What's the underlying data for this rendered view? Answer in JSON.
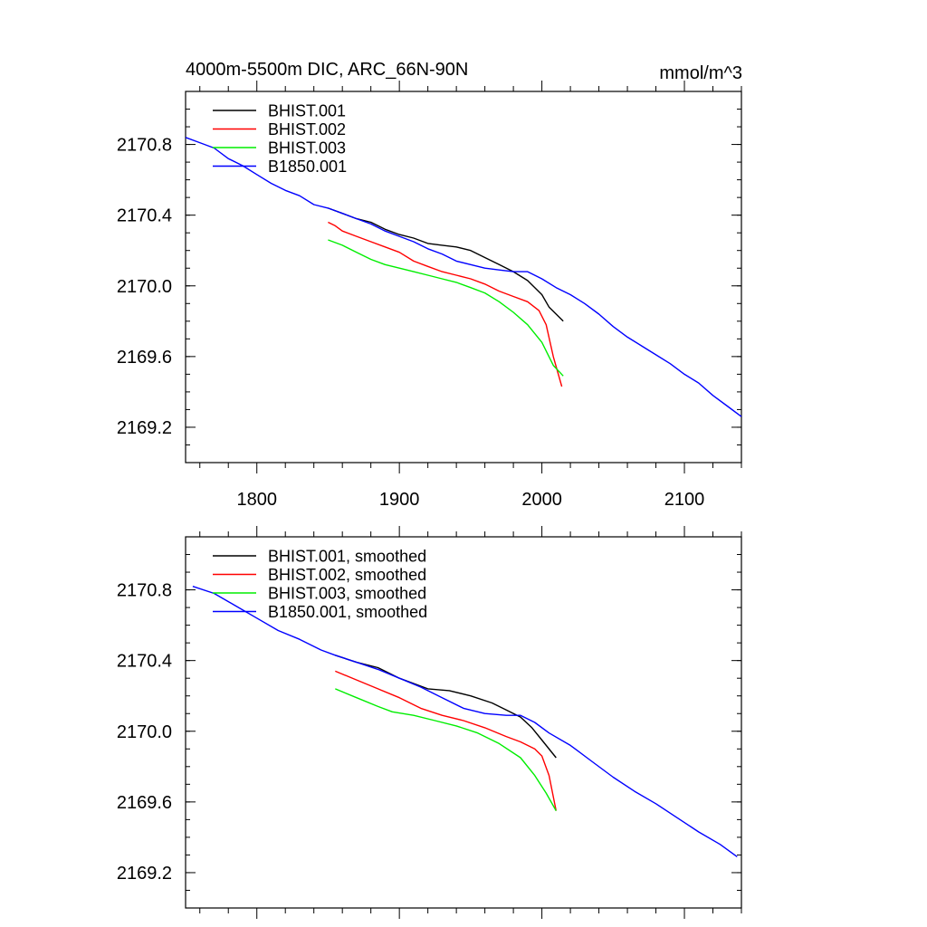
{
  "header": {
    "left_title": "4000m-5500m DIC, ARC_66N-90N",
    "right_title": "mmol/m^3"
  },
  "chart_data": [
    {
      "type": "line",
      "grid": false,
      "legend_position": "top-left",
      "xlim": [
        1750,
        2140
      ],
      "ylim": [
        2169.0,
        2171.1
      ],
      "x_ticks": [
        "1800",
        "1900",
        "2000",
        "2100"
      ],
      "y_ticks": [
        "2170.8",
        "2170.4",
        "2170.0",
        "2169.6",
        "2169.2"
      ],
      "series": [
        {
          "name": "BHIST.001",
          "color": "#000000",
          "points": [
            [
              1850,
              2170.44
            ],
            [
              1860,
              2170.41
            ],
            [
              1870,
              2170.38
            ],
            [
              1880,
              2170.36
            ],
            [
              1890,
              2170.32
            ],
            [
              1900,
              2170.29
            ],
            [
              1910,
              2170.27
            ],
            [
              1920,
              2170.24
            ],
            [
              1930,
              2170.23
            ],
            [
              1940,
              2170.22
            ],
            [
              1950,
              2170.2
            ],
            [
              1960,
              2170.16
            ],
            [
              1970,
              2170.12
            ],
            [
              1980,
              2170.08
            ],
            [
              1990,
              2170.03
            ],
            [
              2000,
              2169.95
            ],
            [
              2005,
              2169.88
            ],
            [
              2015,
              2169.8
            ]
          ]
        },
        {
          "name": "BHIST.002",
          "color": "#ff0000",
          "points": [
            [
              1850,
              2170.36
            ],
            [
              1855,
              2170.34
            ],
            [
              1860,
              2170.31
            ],
            [
              1870,
              2170.28
            ],
            [
              1880,
              2170.25
            ],
            [
              1890,
              2170.22
            ],
            [
              1900,
              2170.19
            ],
            [
              1910,
              2170.14
            ],
            [
              1920,
              2170.11
            ],
            [
              1930,
              2170.08
            ],
            [
              1940,
              2170.06
            ],
            [
              1950,
              2170.04
            ],
            [
              1960,
              2170.01
            ],
            [
              1970,
              2169.97
            ],
            [
              1980,
              2169.94
            ],
            [
              1990,
              2169.91
            ],
            [
              1998,
              2169.86
            ],
            [
              2003,
              2169.78
            ],
            [
              2008,
              2169.6
            ],
            [
              2014,
              2169.43
            ]
          ]
        },
        {
          "name": "BHIST.003",
          "color": "#00ee00",
          "points": [
            [
              1850,
              2170.26
            ],
            [
              1860,
              2170.23
            ],
            [
              1870,
              2170.19
            ],
            [
              1880,
              2170.15
            ],
            [
              1890,
              2170.12
            ],
            [
              1900,
              2170.1
            ],
            [
              1910,
              2170.08
            ],
            [
              1920,
              2170.06
            ],
            [
              1930,
              2170.04
            ],
            [
              1940,
              2170.02
            ],
            [
              1950,
              2169.99
            ],
            [
              1960,
              2169.96
            ],
            [
              1970,
              2169.91
            ],
            [
              1980,
              2169.85
            ],
            [
              1990,
              2169.78
            ],
            [
              2000,
              2169.68
            ],
            [
              2008,
              2169.55
            ],
            [
              2015,
              2169.49
            ]
          ]
        },
        {
          "name": "B1850.001",
          "color": "#0000ff",
          "points": [
            [
              1750,
              2170.84
            ],
            [
              1760,
              2170.81
            ],
            [
              1770,
              2170.78
            ],
            [
              1780,
              2170.72
            ],
            [
              1790,
              2170.68
            ],
            [
              1800,
              2170.63
            ],
            [
              1810,
              2170.58
            ],
            [
              1820,
              2170.54
            ],
            [
              1830,
              2170.51
            ],
            [
              1840,
              2170.46
            ],
            [
              1850,
              2170.44
            ],
            [
              1860,
              2170.41
            ],
            [
              1870,
              2170.38
            ],
            [
              1880,
              2170.35
            ],
            [
              1890,
              2170.31
            ],
            [
              1900,
              2170.28
            ],
            [
              1910,
              2170.25
            ],
            [
              1920,
              2170.21
            ],
            [
              1930,
              2170.18
            ],
            [
              1940,
              2170.14
            ],
            [
              1950,
              2170.12
            ],
            [
              1960,
              2170.1
            ],
            [
              1970,
              2170.09
            ],
            [
              1980,
              2170.08
            ],
            [
              1990,
              2170.08
            ],
            [
              2000,
              2170.04
            ],
            [
              2010,
              2169.99
            ],
            [
              2020,
              2169.95
            ],
            [
              2030,
              2169.9
            ],
            [
              2040,
              2169.84
            ],
            [
              2050,
              2169.77
            ],
            [
              2060,
              2169.71
            ],
            [
              2070,
              2169.66
            ],
            [
              2080,
              2169.61
            ],
            [
              2090,
              2169.56
            ],
            [
              2100,
              2169.5
            ],
            [
              2110,
              2169.45
            ],
            [
              2120,
              2169.38
            ],
            [
              2130,
              2169.32
            ],
            [
              2140,
              2169.26
            ]
          ]
        }
      ]
    },
    {
      "type": "line",
      "grid": false,
      "legend_position": "top-left",
      "xlim": [
        1750,
        2140
      ],
      "ylim": [
        2169.0,
        2171.1
      ],
      "x_ticks": [],
      "y_ticks": [
        "2170.8",
        "2170.4",
        "2170.0",
        "2169.6",
        "2169.2"
      ],
      "series": [
        {
          "name": "BHIST.001, smoothed",
          "color": "#000000",
          "points": [
            [
              1855,
              2170.43
            ],
            [
              1870,
              2170.39
            ],
            [
              1885,
              2170.36
            ],
            [
              1900,
              2170.3
            ],
            [
              1910,
              2170.27
            ],
            [
              1920,
              2170.24
            ],
            [
              1935,
              2170.23
            ],
            [
              1950,
              2170.2
            ],
            [
              1965,
              2170.16
            ],
            [
              1975,
              2170.12
            ],
            [
              1985,
              2170.08
            ],
            [
              1993,
              2170.02
            ],
            [
              2000,
              2169.95
            ],
            [
              2010,
              2169.85
            ]
          ]
        },
        {
          "name": "BHIST.002, smoothed",
          "color": "#ff0000",
          "points": [
            [
              1855,
              2170.34
            ],
            [
              1870,
              2170.29
            ],
            [
              1885,
              2170.24
            ],
            [
              1900,
              2170.19
            ],
            [
              1915,
              2170.13
            ],
            [
              1930,
              2170.09
            ],
            [
              1945,
              2170.06
            ],
            [
              1960,
              2170.02
            ],
            [
              1975,
              2169.97
            ],
            [
              1985,
              2169.94
            ],
            [
              1995,
              2169.9
            ],
            [
              2000,
              2169.86
            ],
            [
              2005,
              2169.75
            ],
            [
              2010,
              2169.55
            ]
          ]
        },
        {
          "name": "BHIST.003, smoothed",
          "color": "#00ee00",
          "points": [
            [
              1855,
              2170.24
            ],
            [
              1870,
              2170.19
            ],
            [
              1885,
              2170.14
            ],
            [
              1895,
              2170.11
            ],
            [
              1910,
              2170.09
            ],
            [
              1925,
              2170.06
            ],
            [
              1940,
              2170.03
            ],
            [
              1955,
              2169.99
            ],
            [
              1970,
              2169.93
            ],
            [
              1985,
              2169.85
            ],
            [
              1995,
              2169.75
            ],
            [
              2003,
              2169.65
            ],
            [
              2010,
              2169.55
            ]
          ]
        },
        {
          "name": "B1850.001, smoothed",
          "color": "#0000ff",
          "points": [
            [
              1755,
              2170.82
            ],
            [
              1770,
              2170.78
            ],
            [
              1785,
              2170.71
            ],
            [
              1800,
              2170.64
            ],
            [
              1815,
              2170.57
            ],
            [
              1830,
              2170.52
            ],
            [
              1845,
              2170.46
            ],
            [
              1855,
              2170.43
            ],
            [
              1870,
              2170.39
            ],
            [
              1885,
              2170.35
            ],
            [
              1900,
              2170.3
            ],
            [
              1915,
              2170.25
            ],
            [
              1930,
              2170.19
            ],
            [
              1945,
              2170.13
            ],
            [
              1960,
              2170.1
            ],
            [
              1975,
              2170.09
            ],
            [
              1985,
              2170.09
            ],
            [
              1995,
              2170.05
            ],
            [
              2005,
              2169.99
            ],
            [
              2020,
              2169.92
            ],
            [
              2035,
              2169.83
            ],
            [
              2050,
              2169.74
            ],
            [
              2065,
              2169.66
            ],
            [
              2080,
              2169.59
            ],
            [
              2095,
              2169.51
            ],
            [
              2110,
              2169.43
            ],
            [
              2125,
              2169.36
            ],
            [
              2137,
              2169.29
            ]
          ]
        }
      ]
    }
  ]
}
